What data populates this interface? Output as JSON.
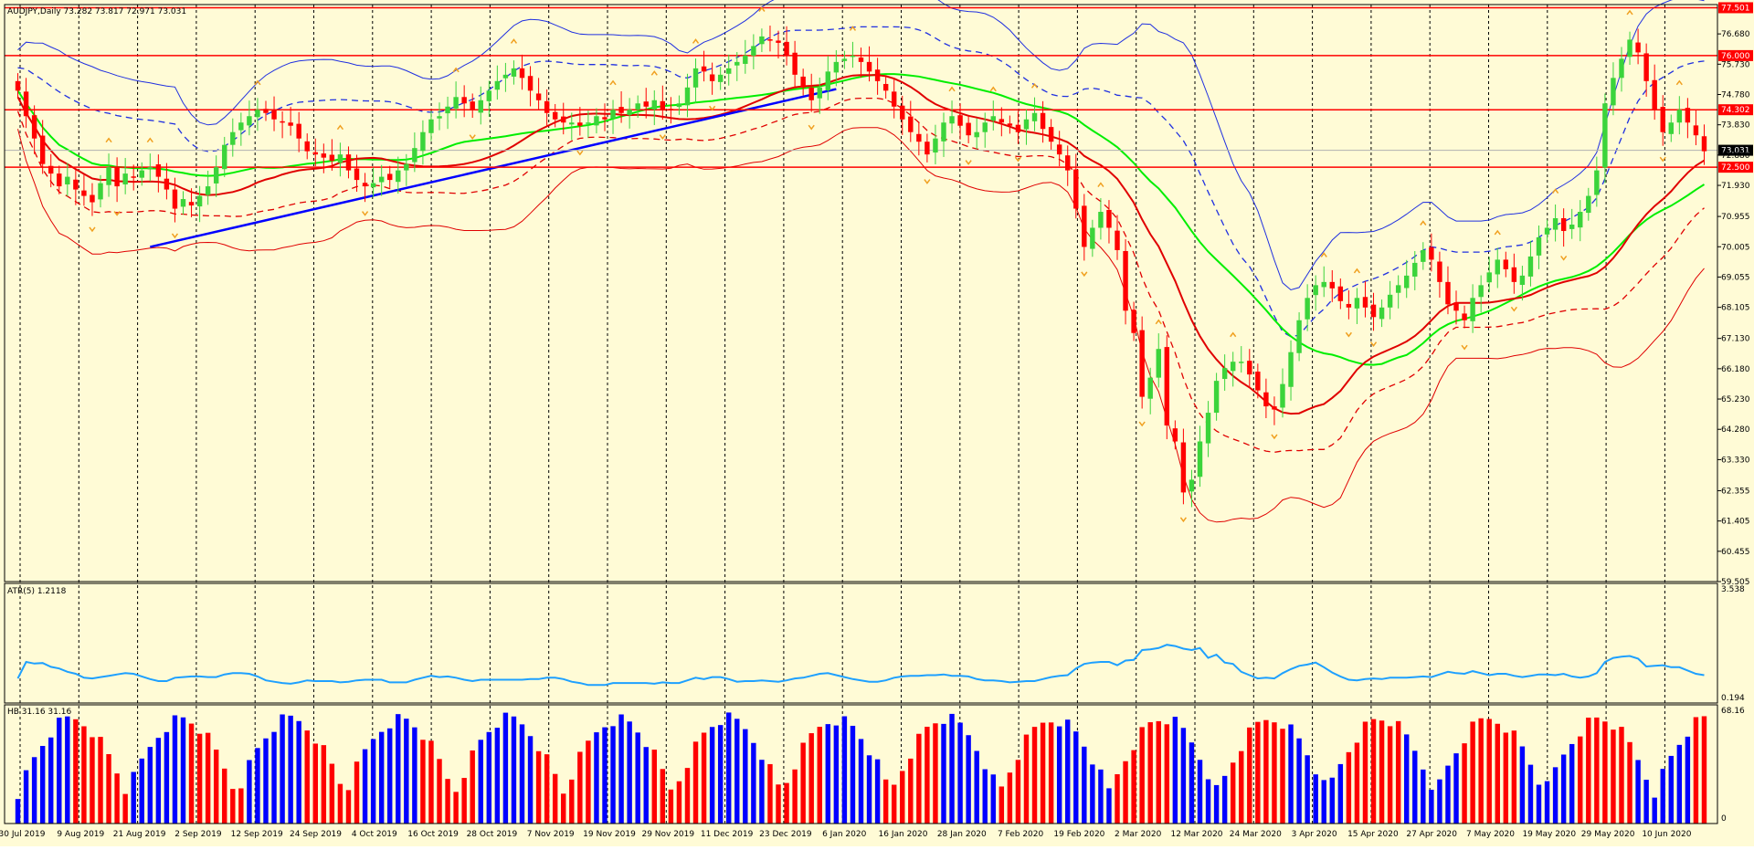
{
  "colors": {
    "background": "#fffbd6",
    "grid": "#000000",
    "up": "#3bd43b",
    "down": "#ff0000",
    "hb_up": "#0000ff",
    "hb_down": "#ff0000",
    "atr": "#1ea0ff",
    "trend": "#0000ff",
    "sma_green": "#00ee00",
    "env_blue": "#2030e0",
    "env_red": "#e00000",
    "fractal": "#f0a020"
  },
  "main": {
    "header": "AUDJPY,Daily  73.282 73.817 72.971 73.031",
    "current_price": "73.031",
    "price_ticks": [
      "76.680",
      "75.730",
      "74.780",
      "73.830",
      "72.880",
      "71.930",
      "70.955",
      "70.005",
      "69.055",
      "68.105",
      "67.130",
      "66.180",
      "65.230",
      "64.280",
      "63.330",
      "62.355",
      "61.405",
      "60.455",
      "59.505"
    ],
    "levels": [
      {
        "label": "77.501",
        "value": 77.501
      },
      {
        "label": "76.000",
        "value": 76.0
      },
      {
        "label": "74.302",
        "value": 74.302
      },
      {
        "label": "72.500",
        "value": 72.5
      }
    ]
  },
  "atr": {
    "header": "ATR(5) 1.2118",
    "ticks": [
      "3.538",
      "0.194"
    ]
  },
  "hb": {
    "header": "HB 31.16 31.16",
    "ticks": [
      "68.16",
      "0"
    ]
  },
  "x_axis": {
    "labels": [
      "30 Jul 2019",
      "9 Aug 2019",
      "21 Aug 2019",
      "2 Sep 2019",
      "12 Sep 2019",
      "24 Sep 2019",
      "4 Oct 2019",
      "16 Oct 2019",
      "28 Oct 2019",
      "7 Nov 2019",
      "19 Nov 2019",
      "29 Nov 2019",
      "11 Dec 2019",
      "23 Dec 2019",
      "6 Jan 2020",
      "16 Jan 2020",
      "28 Jan 2020",
      "7 Feb 2020",
      "19 Feb 2020",
      "2 Mar 2020",
      "12 Mar 2020",
      "24 Mar 2020",
      "3 Apr 2020",
      "15 Apr 2020",
      "27 Apr 2020",
      "7 May 2020",
      "19 May 2020",
      "29 May 2020",
      "10 Jun 2020"
    ]
  },
  "chart_data": {
    "type": "candlestick",
    "symbol": "AUDJPY",
    "timeframe": "Daily",
    "ohlc_last": {
      "open": 73.282,
      "high": 73.817,
      "low": 72.971,
      "close": 73.031
    },
    "y_range": [
      59.505,
      77.6
    ],
    "close_series": [
      74.9,
      74.1,
      73.4,
      72.6,
      72.3,
      71.9,
      72.2,
      71.8,
      71.6,
      71.4,
      72.0,
      72.5,
      71.9,
      72.3,
      72.2,
      72.4,
      72.5,
      72.2,
      71.8,
      71.2,
      71.5,
      71.3,
      71.6,
      71.9,
      72.5,
      73.2,
      73.6,
      73.9,
      74.1,
      74.3,
      74.2,
      74.0,
      73.9,
      73.8,
      73.4,
      73.0,
      72.9,
      72.8,
      72.7,
      72.9,
      72.4,
      72.1,
      71.9,
      72.0,
      72.2,
      72.1,
      72.4,
      72.6,
      73.1,
      73.6,
      74.0,
      74.1,
      74.4,
      74.7,
      74.5,
      74.3,
      74.6,
      74.9,
      75.2,
      75.4,
      75.6,
      75.3,
      74.9,
      74.6,
      74.2,
      74.0,
      73.9,
      73.9,
      73.8,
      73.9,
      74.1,
      74.0,
      74.3,
      74.2,
      74.3,
      74.5,
      74.4,
      74.6,
      74.3,
      74.3,
      74.5,
      75.0,
      75.6,
      75.5,
      75.2,
      75.4,
      75.6,
      75.8,
      76.0,
      76.3,
      76.6,
      76.5,
      76.4,
      76.0,
      75.4,
      75.0,
      74.6,
      75.0,
      75.5,
      75.8,
      75.9,
      76.0,
      75.8,
      75.5,
      75.2,
      74.9,
      74.4,
      74.0,
      73.6,
      73.3,
      72.9,
      73.4,
      73.9,
      74.1,
      73.8,
      73.5,
      73.6,
      73.9,
      74.1,
      73.9,
      73.8,
      73.6,
      74.0,
      74.2,
      73.7,
      73.3,
      72.9,
      72.4,
      71.2,
      70.0,
      70.6,
      71.1,
      70.6,
      69.9,
      68.0,
      67.3,
      65.3,
      65.9,
      66.8,
      64.4,
      63.9,
      62.3,
      62.7,
      63.9,
      64.8,
      65.8,
      66.2,
      66.4,
      66.4,
      66.0,
      65.5,
      65.0,
      64.9,
      65.7,
      66.7,
      67.7,
      68.4,
      68.8,
      68.9,
      68.7,
      68.3,
      68.1,
      68.4,
      68.1,
      67.8,
      68.1,
      68.5,
      68.8,
      69.1,
      69.5,
      69.9,
      69.6,
      68.9,
      68.2,
      68.0,
      67.7,
      68.4,
      68.8,
      69.2,
      69.6,
      69.3,
      68.9,
      69.1,
      69.7,
      70.3,
      70.6,
      70.9,
      70.5,
      70.7,
      71.1,
      71.6,
      72.4,
      74.5,
      75.3,
      75.9,
      76.5,
      76.1,
      75.2,
      74.3,
      73.6,
      73.9,
      74.3,
      73.9,
      73.5,
      73.0
    ]
  }
}
